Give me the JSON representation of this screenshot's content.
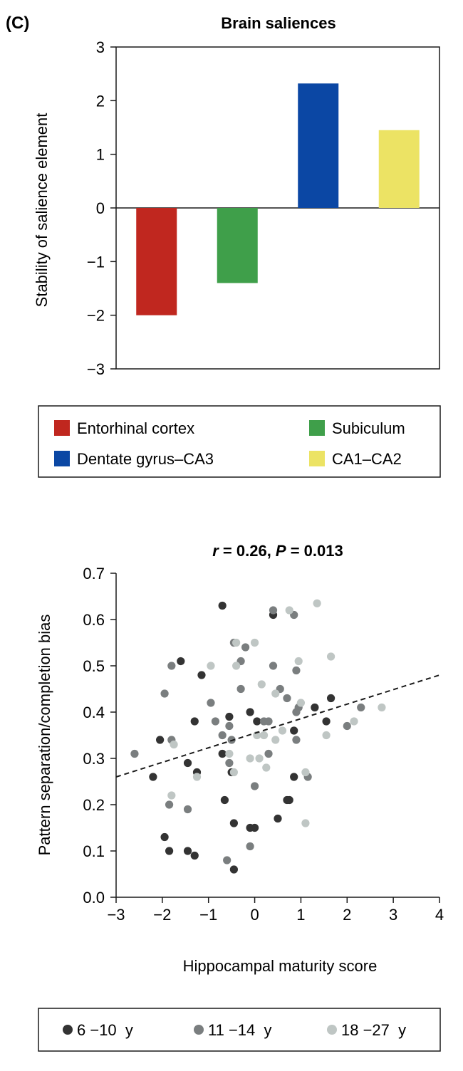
{
  "panel_label": "(C)",
  "chart_data": [
    {
      "type": "bar",
      "title": "Brain saliences",
      "xlabel": "",
      "ylabel": "Stability of salience element",
      "ylim": [
        -3,
        3
      ],
      "yticks": [
        "3",
        "2",
        "1",
        "0",
        "−1",
        "−2",
        "−3"
      ],
      "ytick_values": [
        3,
        2,
        1,
        0,
        -1,
        -2,
        -3
      ],
      "categories": [
        "Entorhinal cortex",
        "Subiculum",
        "Dentate gyrus–CA3",
        "CA1–CA2"
      ],
      "values": [
        -2.0,
        -1.4,
        2.32,
        1.45
      ],
      "colors": [
        "#c0271f",
        "#3f9f4a",
        "#0b47a4",
        "#ece364"
      ],
      "legend_placement": "below",
      "grid": false
    },
    {
      "type": "scatter",
      "title_parts": {
        "r_symbol": "r",
        "r_text": " = 0.26, ",
        "p_symbol": "P",
        "p_text": " = 0.013"
      },
      "xlabel": "Hippocampal maturity score",
      "ylabel": "Pattern separation/completion bias",
      "xlim": [
        -3,
        4
      ],
      "ylim": [
        0.0,
        0.7
      ],
      "xticks": [
        "−3",
        "−2",
        "−1",
        "0",
        "1",
        "2",
        "3",
        "4"
      ],
      "xtick_values": [
        -3,
        -2,
        -1,
        0,
        1,
        2,
        3,
        4
      ],
      "yticks": [
        "0.7",
        "0.6",
        "0.5",
        "0.4",
        "0.3",
        "0.2",
        "0.1",
        "0.0"
      ],
      "ytick_values": [
        0.7,
        0.6,
        0.5,
        0.4,
        0.3,
        0.2,
        0.1,
        0.0
      ],
      "grid": false,
      "legend_placement": "below",
      "trend_line": {
        "style": "dashed",
        "x": [
          -3,
          4
        ],
        "y": [
          0.26,
          0.48
        ]
      },
      "series": [
        {
          "name": "6 −10  y",
          "color": "#333333",
          "points": [
            [
              -0.7,
              0.63
            ],
            [
              0.4,
              0.61
            ],
            [
              -1.6,
              0.51
            ],
            [
              -1.15,
              0.48
            ],
            [
              -1.3,
              0.38
            ],
            [
              -0.55,
              0.39
            ],
            [
              -0.1,
              0.4
            ],
            [
              0.05,
              0.38
            ],
            [
              0.85,
              0.36
            ],
            [
              1.3,
              0.41
            ],
            [
              1.65,
              0.43
            ],
            [
              1.55,
              0.38
            ],
            [
              -2.05,
              0.34
            ],
            [
              -0.7,
              0.31
            ],
            [
              -1.45,
              0.29
            ],
            [
              -1.25,
              0.27
            ],
            [
              -2.2,
              0.26
            ],
            [
              -0.5,
              0.27
            ],
            [
              0.85,
              0.26
            ],
            [
              -0.65,
              0.21
            ],
            [
              0.7,
              0.21
            ],
            [
              0.75,
              0.21
            ],
            [
              -0.45,
              0.16
            ],
            [
              -0.1,
              0.15
            ],
            [
              0.0,
              0.15
            ],
            [
              0.5,
              0.17
            ],
            [
              -1.95,
              0.13
            ],
            [
              -1.85,
              0.1
            ],
            [
              -1.45,
              0.1
            ],
            [
              -1.3,
              0.09
            ],
            [
              -0.45,
              0.06
            ]
          ]
        },
        {
          "name": "11 −14  y",
          "color": "#7a7e7f",
          "points": [
            [
              0.4,
              0.62
            ],
            [
              0.85,
              0.61
            ],
            [
              -0.45,
              0.55
            ],
            [
              -0.2,
              0.54
            ],
            [
              -1.8,
              0.5
            ],
            [
              -0.3,
              0.51
            ],
            [
              0.4,
              0.5
            ],
            [
              0.9,
              0.49
            ],
            [
              -1.95,
              0.44
            ],
            [
              -0.3,
              0.45
            ],
            [
              0.55,
              0.45
            ],
            [
              0.7,
              0.43
            ],
            [
              -0.95,
              0.42
            ],
            [
              0.2,
              0.38
            ],
            [
              0.3,
              0.38
            ],
            [
              -0.85,
              0.38
            ],
            [
              -0.55,
              0.37
            ],
            [
              0.9,
              0.4
            ],
            [
              0.95,
              0.41
            ],
            [
              2.3,
              0.41
            ],
            [
              2.0,
              0.37
            ],
            [
              -0.7,
              0.35
            ],
            [
              -0.5,
              0.34
            ],
            [
              -1.8,
              0.34
            ],
            [
              0.9,
              0.34
            ],
            [
              0.3,
              0.31
            ],
            [
              -2.6,
              0.31
            ],
            [
              -0.55,
              0.29
            ],
            [
              1.15,
              0.26
            ],
            [
              0.0,
              0.24
            ],
            [
              -1.85,
              0.2
            ],
            [
              -1.45,
              0.19
            ],
            [
              -0.1,
              0.11
            ],
            [
              -0.6,
              0.08
            ]
          ]
        },
        {
          "name": "18 −27  y",
          "color": "#bfc6c4",
          "points": [
            [
              1.35,
              0.635
            ],
            [
              0.75,
              0.62
            ],
            [
              -0.4,
              0.55
            ],
            [
              0.0,
              0.55
            ],
            [
              1.65,
              0.52
            ],
            [
              -0.95,
              0.5
            ],
            [
              -0.4,
              0.5
            ],
            [
              0.95,
              0.51
            ],
            [
              0.15,
              0.46
            ],
            [
              0.45,
              0.44
            ],
            [
              1.0,
              0.42
            ],
            [
              2.15,
              0.38
            ],
            [
              2.75,
              0.41
            ],
            [
              1.55,
              0.35
            ],
            [
              0.05,
              0.35
            ],
            [
              0.2,
              0.35
            ],
            [
              0.45,
              0.34
            ],
            [
              0.6,
              0.36
            ],
            [
              -1.75,
              0.33
            ],
            [
              -0.55,
              0.31
            ],
            [
              -0.1,
              0.3
            ],
            [
              0.1,
              0.3
            ],
            [
              0.25,
              0.28
            ],
            [
              -0.45,
              0.27
            ],
            [
              1.1,
              0.27
            ],
            [
              -1.25,
              0.26
            ],
            [
              -1.8,
              0.22
            ],
            [
              1.1,
              0.16
            ]
          ]
        }
      ]
    }
  ]
}
